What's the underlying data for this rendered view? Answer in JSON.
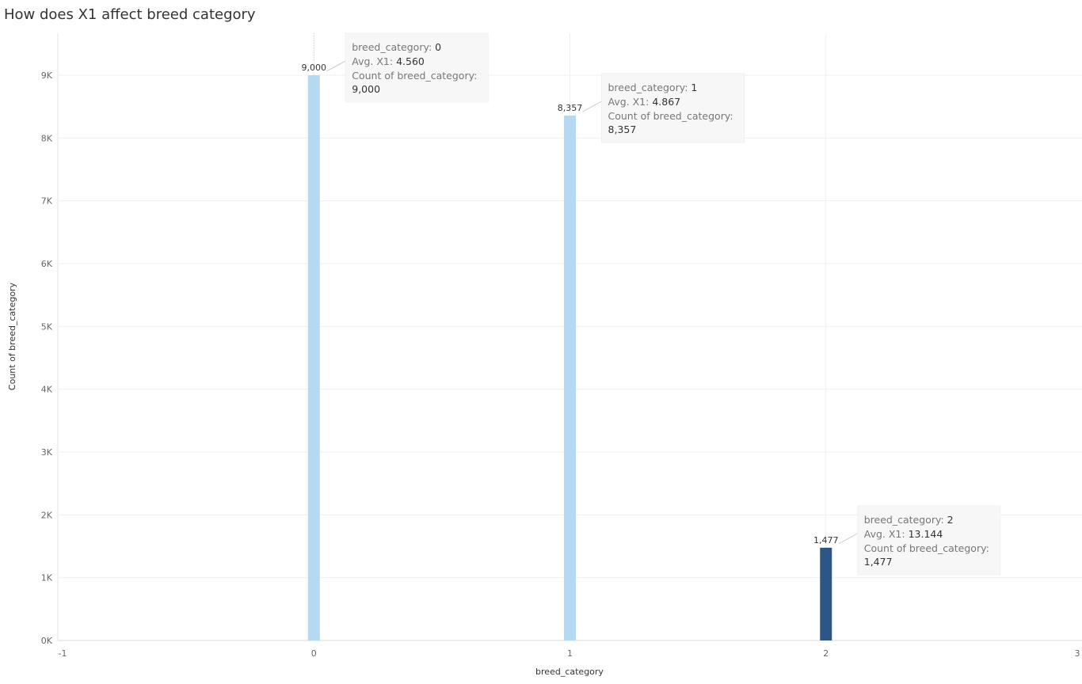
{
  "title": "How does X1 affect breed category",
  "chart_data": {
    "type": "bar",
    "title": "How does X1 affect breed category",
    "xlabel": "breed_category",
    "ylabel": "Count of breed_category",
    "xlim": [
      -1,
      3
    ],
    "ylim": [
      0,
      9500
    ],
    "x_ticks": [
      "-1",
      "0",
      "1",
      "2",
      "3"
    ],
    "y_ticks": [
      "0K",
      "1K",
      "2K",
      "3K",
      "4K",
      "5K",
      "6K",
      "7K",
      "8K",
      "9K"
    ],
    "grid": true,
    "bars": [
      {
        "x": 0,
        "value": 9000,
        "label": "9,000",
        "avg_x1": "4.560",
        "color": "#b4d9f0"
      },
      {
        "x": 1,
        "value": 8357,
        "label": "8,357",
        "avg_x1": "4.867",
        "color": "#b4d9f0"
      },
      {
        "x": 2,
        "value": 1477,
        "label": "1,477",
        "avg_x1": "13.144",
        "color": "#2c5685"
      }
    ],
    "annotation_labels": {
      "category": "breed_category: ",
      "avg": "Avg. X1: ",
      "count": "Count of breed_category:"
    }
  }
}
